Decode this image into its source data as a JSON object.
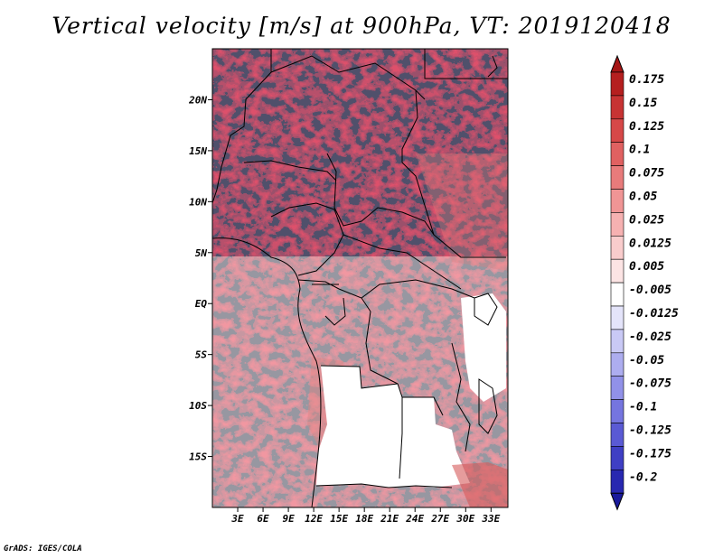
{
  "title": "Vertical velocity [m/s] at 900hPa, VT: 2019120418",
  "footer": "GrADS: IGES/COLA",
  "map": {
    "lon_range": [
      0,
      35
    ],
    "lat_range": [
      -20,
      25
    ],
    "lat_ticks": [
      {
        "lat": 20,
        "label": "20N"
      },
      {
        "lat": 15,
        "label": "15N"
      },
      {
        "lat": 10,
        "label": "10N"
      },
      {
        "lat": 5,
        "label": "5N"
      },
      {
        "lat": 0,
        "label": "EQ"
      },
      {
        "lat": -5,
        "label": "5S"
      },
      {
        "lat": -10,
        "label": "10S"
      },
      {
        "lat": -15,
        "label": "15S"
      }
    ],
    "lon_ticks": [
      {
        "lon": 3,
        "label": "3E"
      },
      {
        "lon": 6,
        "label": "6E"
      },
      {
        "lon": 9,
        "label": "9E"
      },
      {
        "lon": 12,
        "label": "12E"
      },
      {
        "lon": 15,
        "label": "15E"
      },
      {
        "lon": 18,
        "label": "18E"
      },
      {
        "lon": 21,
        "label": "21E"
      },
      {
        "lon": 24,
        "label": "24E"
      },
      {
        "lon": 27,
        "label": "27E"
      },
      {
        "lon": 30,
        "label": "30E"
      },
      {
        "lon": 33,
        "label": "33E"
      }
    ]
  },
  "colorbar": {
    "levels": [
      {
        "label": "0.175",
        "color": "#b51f1f"
      },
      {
        "label": "0.15",
        "color": "#c73333"
      },
      {
        "label": "0.125",
        "color": "#d64848"
      },
      {
        "label": "0.1",
        "color": "#e06161"
      },
      {
        "label": "0.075",
        "color": "#e87b7b"
      },
      {
        "label": "0.05",
        "color": "#f09595"
      },
      {
        "label": "0.025",
        "color": "#f6b1b1"
      },
      {
        "label": "0.0125",
        "color": "#f9cccc"
      },
      {
        "label": "0.005",
        "color": "#fce4e4"
      },
      {
        "label": "-0.005",
        "color": "#ffffff"
      },
      {
        "label": "-0.0125",
        "color": "#e4e4fa"
      },
      {
        "label": "-0.025",
        "color": "#c9c9f5"
      },
      {
        "label": "-0.05",
        "color": "#adadef"
      },
      {
        "label": "-0.075",
        "color": "#9191e8"
      },
      {
        "label": "-0.1",
        "color": "#7575df"
      },
      {
        "label": "-0.125",
        "color": "#5a5ad4"
      },
      {
        "label": "-0.175",
        "color": "#3f3fc4"
      },
      {
        "label": "-0.2",
        "color": "#2828b0"
      }
    ],
    "top_color": "#a51515",
    "bottom_color": "#1a1a9c"
  }
}
